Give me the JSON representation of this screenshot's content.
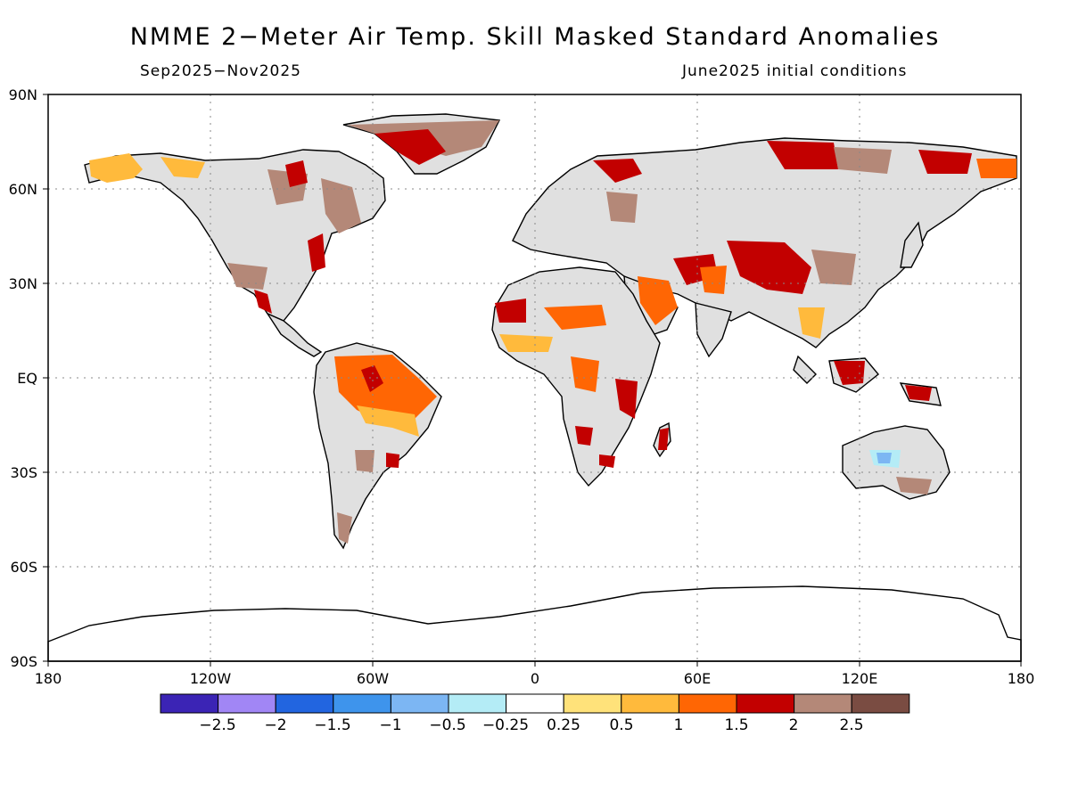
{
  "header": {
    "title": "NMME 2-Meter Air Temp. Skill Masked Standard Anomalies",
    "period": "Sep2025-Nov2025",
    "initial_conditions": "June2025 initial conditions"
  },
  "axes": {
    "lat_ticks": [
      "90N",
      "60N",
      "30N",
      "EQ",
      "30S",
      "60S",
      "90S"
    ],
    "lon_ticks": [
      "180",
      "120W",
      "60W",
      "0",
      "60E",
      "120E",
      "180"
    ]
  },
  "legend": {
    "labels": [
      "-2.5",
      "-2",
      "-1.5",
      "-1",
      "-0.5",
      "-0.25",
      "0.25",
      "0.5",
      "1",
      "1.5",
      "2",
      "2.5"
    ],
    "colors": [
      "#3b24b5",
      "#a186f5",
      "#2265e0",
      "#3e94ec",
      "#7cb6f3",
      "#b4ecf6",
      "#ffffff",
      "#ffe27a",
      "#ffba3c",
      "#ff6604",
      "#c20000",
      "#b48878",
      "#7a4c42"
    ]
  },
  "colors": {
    "land_masked": "#e0e0e0",
    "ocean": "#ffffff"
  }
}
